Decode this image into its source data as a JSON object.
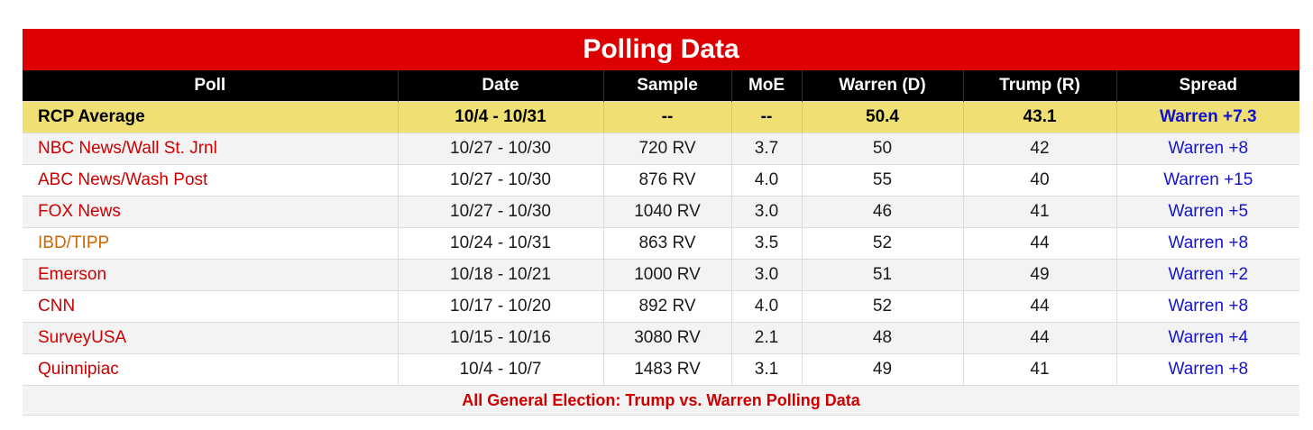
{
  "title": "Polling Data",
  "chart_data": {
    "type": "table",
    "columns": [
      "Poll",
      "Date",
      "Sample",
      "MoE",
      "Warren (D)",
      "Trump (R)",
      "Spread"
    ],
    "average": {
      "poll": "RCP Average",
      "date": "10/4 - 10/31",
      "sample": "--",
      "moe": "--",
      "warren": "50.4",
      "trump": "43.1",
      "spread": "Warren +7.3"
    },
    "rows": [
      {
        "poll": "NBC News/Wall St. Jrnl",
        "date": "10/27 - 10/30",
        "sample": "720 RV",
        "moe": "3.7",
        "warren": "50",
        "trump": "42",
        "spread": "Warren +8",
        "poll_color": "#cc0000"
      },
      {
        "poll": "ABC News/Wash Post",
        "date": "10/27 - 10/30",
        "sample": "876 RV",
        "moe": "4.0",
        "warren": "55",
        "trump": "40",
        "spread": "Warren +15",
        "poll_color": "#cc0000"
      },
      {
        "poll": "FOX News",
        "date": "10/27 - 10/30",
        "sample": "1040 RV",
        "moe": "3.0",
        "warren": "46",
        "trump": "41",
        "spread": "Warren +5",
        "poll_color": "#cc0000"
      },
      {
        "poll": "IBD/TIPP",
        "date": "10/24 - 10/31",
        "sample": "863 RV",
        "moe": "3.5",
        "warren": "52",
        "trump": "44",
        "spread": "Warren +8",
        "poll_color": "#cc6600"
      },
      {
        "poll": "Emerson",
        "date": "10/18 - 10/21",
        "sample": "1000 RV",
        "moe": "3.0",
        "warren": "51",
        "trump": "49",
        "spread": "Warren +2",
        "poll_color": "#cc0000"
      },
      {
        "poll": "CNN",
        "date": "10/17 - 10/20",
        "sample": "892 RV",
        "moe": "4.0",
        "warren": "52",
        "trump": "44",
        "spread": "Warren +8",
        "poll_color": "#cc0000"
      },
      {
        "poll": "SurveyUSA",
        "date": "10/15 - 10/16",
        "sample": "3080 RV",
        "moe": "2.1",
        "warren": "48",
        "trump": "44",
        "spread": "Warren +4",
        "poll_color": "#cc0000"
      },
      {
        "poll": "Quinnipiac",
        "date": "10/4 - 10/7",
        "sample": "1483 RV",
        "moe": "3.1",
        "warren": "49",
        "trump": "41",
        "spread": "Warren +8",
        "poll_color": "#cc0000"
      }
    ]
  },
  "footer_link": "All General Election: Trump vs. Warren Polling Data",
  "colors": {
    "title_bar": "#dd0000",
    "header": "#000000",
    "average_row": "#f0df73",
    "spread": "#1414d0",
    "poll_link": "#cc0000"
  }
}
